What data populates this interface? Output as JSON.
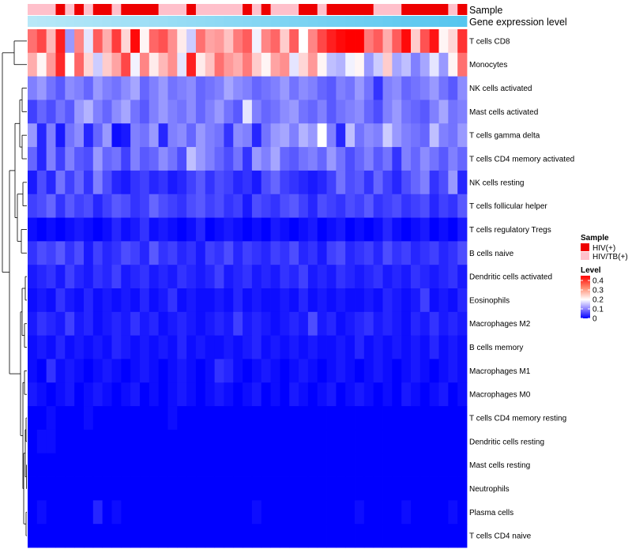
{
  "chart_data": {
    "type": "heatmap",
    "title": "",
    "annotation_tracks": [
      {
        "name": "Sample",
        "type": "categorical"
      },
      {
        "name": "Gene expression level",
        "type": "continuous"
      }
    ],
    "rows": [
      "T cells CD8",
      "Monocytes",
      "NK cells activated",
      "Mast cells activated",
      "T cells gamma delta",
      "T cells CD4 memory activated",
      "NK cells resting",
      "T cells follicular helper",
      "T cells regulatory  Tregs",
      "B cells naive",
      "Dendritic cells activated",
      "Eosinophils",
      "Macrophages M2",
      "B cells memory",
      "Macrophages M1",
      "Macrophages M0",
      "T cells CD4 memory resting",
      "Dendritic cells resting",
      "Mast cells resting",
      "Neutrophils",
      "Plasma cells",
      "T cells CD4 naive"
    ],
    "n_columns": 47,
    "sample_groups": [
      "HIV/TB(+)",
      "HIV/TB(+)",
      "HIV/TB(+)",
      "HIV(+)",
      "HIV/TB(+)",
      "HIV(+)",
      "HIV/TB(+)",
      "HIV(+)",
      "HIV(+)",
      "HIV/TB(+)",
      "HIV(+)",
      "HIV(+)",
      "HIV(+)",
      "HIV(+)",
      "HIV/TB(+)",
      "HIV/TB(+)",
      "HIV/TB(+)",
      "HIV(+)",
      "HIV/TB(+)",
      "HIV/TB(+)",
      "HIV/TB(+)",
      "HIV/TB(+)",
      "HIV/TB(+)",
      "HIV(+)",
      "HIV/TB(+)",
      "HIV(+)",
      "HIV/TB(+)",
      "HIV/TB(+)",
      "HIV/TB(+)",
      "HIV(+)",
      "HIV(+)",
      "HIV/TB(+)",
      "HIV(+)",
      "HIV(+)",
      "HIV(+)",
      "HIV(+)",
      "HIV(+)",
      "HIV/TB(+)",
      "HIV/TB(+)",
      "HIV/TB(+)",
      "HIV(+)",
      "HIV(+)",
      "HIV(+)",
      "HIV(+)",
      "HIV(+)",
      "HIV/TB(+)",
      "HIV(+)"
    ],
    "gene_expression_level": [
      0,
      0.02,
      0.04,
      0.07,
      0.09,
      0.11,
      0.13,
      0.15,
      0.17,
      0.2,
      0.22,
      0.24,
      0.26,
      0.28,
      0.3,
      0.33,
      0.35,
      0.37,
      0.39,
      0.41,
      0.43,
      0.46,
      0.48,
      0.5,
      0.52,
      0.54,
      0.57,
      0.59,
      0.61,
      0.63,
      0.65,
      0.67,
      0.7,
      0.72,
      0.74,
      0.76,
      0.78,
      0.8,
      0.83,
      0.85,
      0.87,
      0.89,
      0.91,
      0.93,
      0.96,
      0.98,
      1
    ],
    "row_levels": [
      [
        0.34,
        0.38,
        0.27,
        0.42,
        0.12,
        0.32,
        0.18,
        0.36,
        0.28,
        0.39,
        0.24,
        0.44,
        0.21,
        0.35,
        0.37,
        0.31,
        0.22,
        0.16,
        0.34,
        0.29,
        0.3,
        0.26,
        0.33,
        0.36,
        0.19,
        0.32,
        0.35,
        0.25,
        0.36,
        0.2,
        0.32,
        0.38,
        0.42,
        0.44,
        0.45,
        0.45,
        0.33,
        0.36,
        0.28,
        0.36,
        0.44,
        0.25,
        0.37,
        0.43,
        0.21,
        0.24,
        0.4
      ],
      [
        0.28,
        0.21,
        0.3,
        0.41,
        0.2,
        0.35,
        0.24,
        0.16,
        0.25,
        0.29,
        0.38,
        0.19,
        0.32,
        0.22,
        0.27,
        0.31,
        0.18,
        0.42,
        0.22,
        0.26,
        0.34,
        0.3,
        0.28,
        0.33,
        0.25,
        0.21,
        0.29,
        0.31,
        0.18,
        0.24,
        0.3,
        0.21,
        0.15,
        0.14,
        0.19,
        0.21,
        0.12,
        0.16,
        0.25,
        0.13,
        0.15,
        0.1,
        0.13,
        0.18,
        0.12,
        0.21,
        0.34
      ],
      [
        0.1,
        0.12,
        0.09,
        0.07,
        0.11,
        0.1,
        0.08,
        0.12,
        0.1,
        0.09,
        0.11,
        0.13,
        0.08,
        0.1,
        0.12,
        0.09,
        0.1,
        0.11,
        0.08,
        0.09,
        0.1,
        0.13,
        0.11,
        0.1,
        0.08,
        0.09,
        0.1,
        0.12,
        0.09,
        0.11,
        0.1,
        0.08,
        0.07,
        0.1,
        0.09,
        0.12,
        0.09,
        0.04,
        0.1,
        0.11,
        0.08,
        0.09,
        0.1,
        0.12,
        0.09,
        0.07,
        0.11
      ],
      [
        0.05,
        0.08,
        0.06,
        0.09,
        0.07,
        0.12,
        0.14,
        0.1,
        0.08,
        0.11,
        0.13,
        0.09,
        0.07,
        0.1,
        0.12,
        0.1,
        0.09,
        0.11,
        0.08,
        0.1,
        0.12,
        0.09,
        0.07,
        0.18,
        0.1,
        0.08,
        0.09,
        0.11,
        0.12,
        0.09,
        0.08,
        0.1,
        0.07,
        0.09,
        0.1,
        0.11,
        0.08,
        0.06,
        0.1,
        0.12,
        0.09,
        0.08,
        0.07,
        0.1,
        0.13,
        0.09,
        0.1
      ],
      [
        0.12,
        0.03,
        0.1,
        0.02,
        0.09,
        0.11,
        0.03,
        0.08,
        0.12,
        0.01,
        0.02,
        0.1,
        0.09,
        0.12,
        0.03,
        0.1,
        0.11,
        0.08,
        0.12,
        0.1,
        0.09,
        0.04,
        0.11,
        0.1,
        0.03,
        0.09,
        0.12,
        0.13,
        0.1,
        0.14,
        0.12,
        0.2,
        0.1,
        0.03,
        0.15,
        0.09,
        0.11,
        0.1,
        0.16,
        0.12,
        0.1,
        0.09,
        0.08,
        0.15,
        0.1,
        0.09,
        0.12
      ],
      [
        0.08,
        0.03,
        0.1,
        0.05,
        0.1,
        0.07,
        0.06,
        0.12,
        0.08,
        0.09,
        0.05,
        0.1,
        0.07,
        0.08,
        0.11,
        0.09,
        0.06,
        0.15,
        0.12,
        0.1,
        0.08,
        0.06,
        0.09,
        0.04,
        0.12,
        0.1,
        0.13,
        0.08,
        0.07,
        0.09,
        0.1,
        0.08,
        0.12,
        0.09,
        0.06,
        0.08,
        0.1,
        0.07,
        0.09,
        0.04,
        0.1,
        0.08,
        0.11,
        0.09,
        0.07,
        0.1,
        0.08
      ],
      [
        0.02,
        0.06,
        0.03,
        0.09,
        0.05,
        0.08,
        0.04,
        0.1,
        0.06,
        0.03,
        0.02,
        0.04,
        0.05,
        0.03,
        0.04,
        0.02,
        0.03,
        0.05,
        0.07,
        0.04,
        0.06,
        0.05,
        0.03,
        0.04,
        0.02,
        0.06,
        0.08,
        0.05,
        0.04,
        0.03,
        0.02,
        0.03,
        0.05,
        0.09,
        0.06,
        0.07,
        0.04,
        0.08,
        0.05,
        0.03,
        0.06,
        0.08,
        0.1,
        0.04,
        0.06,
        0.12,
        0.03
      ],
      [
        0.05,
        0.06,
        0.08,
        0.04,
        0.07,
        0.05,
        0.06,
        0.03,
        0.05,
        0.07,
        0.06,
        0.04,
        0.05,
        0.08,
        0.06,
        0.05,
        0.04,
        0.06,
        0.07,
        0.05,
        0.06,
        0.04,
        0.05,
        0.02,
        0.06,
        0.05,
        0.04,
        0.06,
        0.07,
        0.05,
        0.03,
        0.06,
        0.05,
        0.04,
        0.06,
        0.05,
        0.07,
        0.04,
        0.05,
        0.06,
        0.04,
        0.05,
        0.06,
        0.03,
        0.05,
        0.04,
        0.07
      ],
      [
        0.01,
        0.0,
        0.01,
        0.0,
        0.01,
        0.02,
        0.01,
        0.0,
        0.01,
        0.03,
        0.01,
        0.02,
        0.04,
        0.01,
        0.02,
        0.01,
        0.0,
        0.01,
        0.03,
        0.0,
        0.01,
        0.02,
        0.01,
        0.0,
        0.01,
        0.0,
        0.02,
        0.01,
        0.0,
        0.01,
        0.02,
        0.0,
        0.01,
        0.02,
        0.0,
        0.01,
        0.0,
        0.01,
        0.03,
        0.01,
        0.0,
        0.01,
        0.02,
        0.0,
        0.01,
        0.0,
        0.02
      ],
      [
        0.04,
        0.06,
        0.05,
        0.07,
        0.04,
        0.06,
        0.02,
        0.05,
        0.03,
        0.04,
        0.06,
        0.05,
        0.03,
        0.07,
        0.04,
        0.05,
        0.03,
        0.04,
        0.02,
        0.05,
        0.04,
        0.06,
        0.03,
        0.05,
        0.04,
        0.03,
        0.05,
        0.04,
        0.06,
        0.03,
        0.04,
        0.02,
        0.05,
        0.06,
        0.03,
        0.04,
        0.05,
        0.03,
        0.06,
        0.04,
        0.05,
        0.03,
        0.04,
        0.05,
        0.03,
        0.04,
        0.06
      ],
      [
        0.02,
        0.03,
        0.04,
        0.02,
        0.05,
        0.03,
        0.02,
        0.04,
        0.03,
        0.05,
        0.02,
        0.03,
        0.04,
        0.02,
        0.03,
        0.02,
        0.04,
        0.03,
        0.02,
        0.03,
        0.05,
        0.02,
        0.03,
        0.04,
        0.02,
        0.03,
        0.02,
        0.04,
        0.03,
        0.05,
        0.02,
        0.03,
        0.02,
        0.04,
        0.03,
        0.02,
        0.03,
        0.04,
        0.02,
        0.03,
        0.02,
        0.04,
        0.03,
        0.02,
        0.03,
        0.04,
        0.02
      ],
      [
        0.01,
        0.02,
        0.01,
        0.04,
        0.02,
        0.01,
        0.03,
        0.01,
        0.02,
        0.01,
        0.02,
        0.01,
        0.03,
        0.01,
        0.02,
        0.04,
        0.01,
        0.02,
        0.01,
        0.01,
        0.02,
        0.01,
        0.03,
        0.01,
        0.02,
        0.01,
        0.01,
        0.02,
        0.01,
        0.03,
        0.01,
        0.02,
        0.01,
        0.02,
        0.01,
        0.01,
        0.02,
        0.01,
        0.03,
        0.02,
        0.01,
        0.02,
        0.05,
        0.01,
        0.02,
        0.01,
        0.03
      ],
      [
        0.02,
        0.04,
        0.03,
        0.02,
        0.05,
        0.02,
        0.03,
        0.01,
        0.02,
        0.03,
        0.02,
        0.04,
        0.02,
        0.03,
        0.01,
        0.02,
        0.03,
        0.02,
        0.01,
        0.02,
        0.03,
        0.02,
        0.05,
        0.02,
        0.03,
        0.02,
        0.01,
        0.02,
        0.03,
        0.02,
        0.06,
        0.02,
        0.03,
        0.01,
        0.02,
        0.03,
        0.04,
        0.02,
        0.03,
        0.02,
        0.01,
        0.03,
        0.02,
        0.04,
        0.02,
        0.03,
        0.02
      ],
      [
        0.01,
        0.02,
        0.01,
        0.03,
        0.01,
        0.02,
        0.01,
        0.02,
        0.01,
        0.03,
        0.02,
        0.01,
        0.02,
        0.01,
        0.02,
        0.01,
        0.03,
        0.01,
        0.02,
        0.01,
        0.01,
        0.02,
        0.01,
        0.02,
        0.03,
        0.01,
        0.02,
        0.01,
        0.02,
        0.01,
        0.02,
        0.01,
        0.01,
        0.02,
        0.01,
        0.03,
        0.01,
        0.02,
        0.01,
        0.02,
        0.01,
        0.02,
        0.01,
        0.03,
        0.01,
        0.02,
        0.01
      ],
      [
        0.01,
        0.0,
        0.04,
        0.01,
        0.02,
        0.01,
        0.0,
        0.01,
        0.02,
        0.01,
        0.0,
        0.01,
        0.02,
        0.01,
        0.0,
        0.01,
        0.02,
        0.01,
        0.0,
        0.01,
        0.04,
        0.03,
        0.01,
        0.0,
        0.01,
        0.02,
        0.01,
        0.0,
        0.01,
        0.02,
        0.01,
        0.0,
        0.01,
        0.02,
        0.01,
        0.0,
        0.01,
        0.02,
        0.01,
        0.0,
        0.01,
        0.02,
        0.01,
        0.0,
        0.01,
        0.02,
        0.01
      ],
      [
        0.02,
        0.01,
        0.0,
        0.01,
        0.02,
        0.0,
        0.01,
        0.02,
        0.01,
        0.0,
        0.01,
        0.02,
        0.0,
        0.01,
        0.0,
        0.01,
        0.02,
        0.01,
        0.0,
        0.01,
        0.02,
        0.01,
        0.0,
        0.01,
        0.02,
        0.0,
        0.01,
        0.0,
        0.02,
        0.01,
        0.0,
        0.01,
        0.02,
        0.0,
        0.01,
        0.02,
        0.01,
        0.0,
        0.01,
        0.0,
        0.02,
        0.01,
        0.0,
        0.01,
        0.02,
        0.0,
        0.01
      ],
      [
        0.0,
        0.0,
        0.01,
        0.0,
        0.0,
        0.0,
        0.01,
        0.0,
        0.0,
        0.0,
        0.0,
        0.0,
        0.0,
        0.0,
        0.0,
        0.01,
        0.0,
        0.0,
        0.0,
        0.0,
        0.0,
        0.0,
        0.0,
        0.0,
        0.0,
        0.0,
        0.0,
        0.0,
        0.0,
        0.0,
        0.0,
        0.0,
        0.0,
        0.0,
        0.0,
        0.0,
        0.0,
        0.0,
        0.0,
        0.0,
        0.0,
        0.0,
        0.0,
        0.0,
        0.0,
        0.0,
        0.0
      ],
      [
        0.0,
        0.01,
        0.01,
        0.0,
        0.0,
        0.0,
        0.0,
        0.0,
        0.0,
        0.0,
        0.0,
        0.0,
        0.0,
        0.0,
        0.0,
        0.0,
        0.0,
        0.0,
        0.0,
        0.0,
        0.0,
        0.0,
        0.0,
        0.0,
        0.0,
        0.0,
        0.0,
        0.0,
        0.0,
        0.0,
        0.0,
        0.0,
        0.0,
        0.0,
        0.0,
        0.0,
        0.0,
        0.0,
        0.0,
        0.0,
        0.0,
        0.0,
        0.0,
        0.0,
        0.0,
        0.0,
        0.0
      ],
      [
        0.0,
        0.0,
        0.0,
        0.0,
        0.0,
        0.0,
        0.0,
        0.0,
        0.0,
        0.0,
        0.0,
        0.0,
        0.0,
        0.0,
        0.0,
        0.0,
        0.0,
        0.0,
        0.0,
        0.0,
        0.0,
        0.0,
        0.0,
        0.0,
        0.0,
        0.0,
        0.0,
        0.0,
        0.0,
        0.0,
        0.0,
        0.0,
        0.0,
        0.0,
        0.0,
        0.0,
        0.0,
        0.0,
        0.0,
        0.0,
        0.0,
        0.0,
        0.0,
        0.0,
        0.0,
        0.0,
        0.0
      ],
      [
        0.0,
        0.0,
        0.0,
        0.0,
        0.0,
        0.0,
        0.0,
        0.0,
        0.0,
        0.0,
        0.0,
        0.0,
        0.0,
        0.0,
        0.0,
        0.0,
        0.0,
        0.0,
        0.0,
        0.0,
        0.0,
        0.0,
        0.0,
        0.0,
        0.0,
        0.0,
        0.0,
        0.0,
        0.0,
        0.0,
        0.0,
        0.0,
        0.0,
        0.0,
        0.0,
        0.0,
        0.0,
        0.0,
        0.0,
        0.0,
        0.0,
        0.0,
        0.0,
        0.0,
        0.0,
        0.0,
        0.0
      ],
      [
        0.0,
        0.01,
        0.0,
        0.0,
        0.0,
        0.0,
        0.0,
        0.03,
        0.0,
        0.01,
        0.0,
        0.0,
        0.0,
        0.0,
        0.0,
        0.0,
        0.0,
        0.0,
        0.0,
        0.0,
        0.0,
        0.0,
        0.0,
        0.0,
        0.01,
        0.0,
        0.0,
        0.0,
        0.0,
        0.0,
        0.0,
        0.0,
        0.0,
        0.0,
        0.0,
        0.01,
        0.0,
        0.0,
        0.0,
        0.0,
        0.01,
        0.0,
        0.0,
        0.0,
        0.0,
        0.01,
        0.0
      ],
      [
        0.0,
        0.0,
        0.0,
        0.0,
        0.0,
        0.0,
        0.0,
        0.0,
        0.0,
        0.0,
        0.0,
        0.0,
        0.0,
        0.0,
        0.0,
        0.0,
        0.0,
        0.0,
        0.0,
        0.0,
        0.0,
        0.0,
        0.0,
        0.0,
        0.0,
        0.0,
        0.0,
        0.0,
        0.0,
        0.0,
        0.0,
        0.0,
        0.0,
        0.0,
        0.0,
        0.0,
        0.0,
        0.0,
        0.0,
        0.0,
        0.0,
        0.0,
        0.0,
        0.0,
        0.0,
        0.0,
        0.0
      ]
    ],
    "color_scale": {
      "min": 0,
      "mid": 0.2,
      "max": 0.45,
      "low": "#0000ff",
      "mid_color": "#ffffff",
      "high": "#ff0000"
    },
    "legend": {
      "sample_title": "Sample",
      "sample_items": [
        {
          "label": "HIV(+)",
          "color": "#ee0000"
        },
        {
          "label": "HIV/TB(+)",
          "color": "#ffc0cb"
        }
      ],
      "level_title": "Level",
      "level_ticks": [
        "0.4",
        "0.3",
        "0.2",
        "0.1",
        "0"
      ],
      "level_tick_values": [
        0.4,
        0.3,
        0.2,
        0.1,
        0
      ],
      "placement": "right"
    },
    "gene_expression_colors": {
      "low": "#b8e8f8",
      "high": "#56c6ef"
    }
  }
}
